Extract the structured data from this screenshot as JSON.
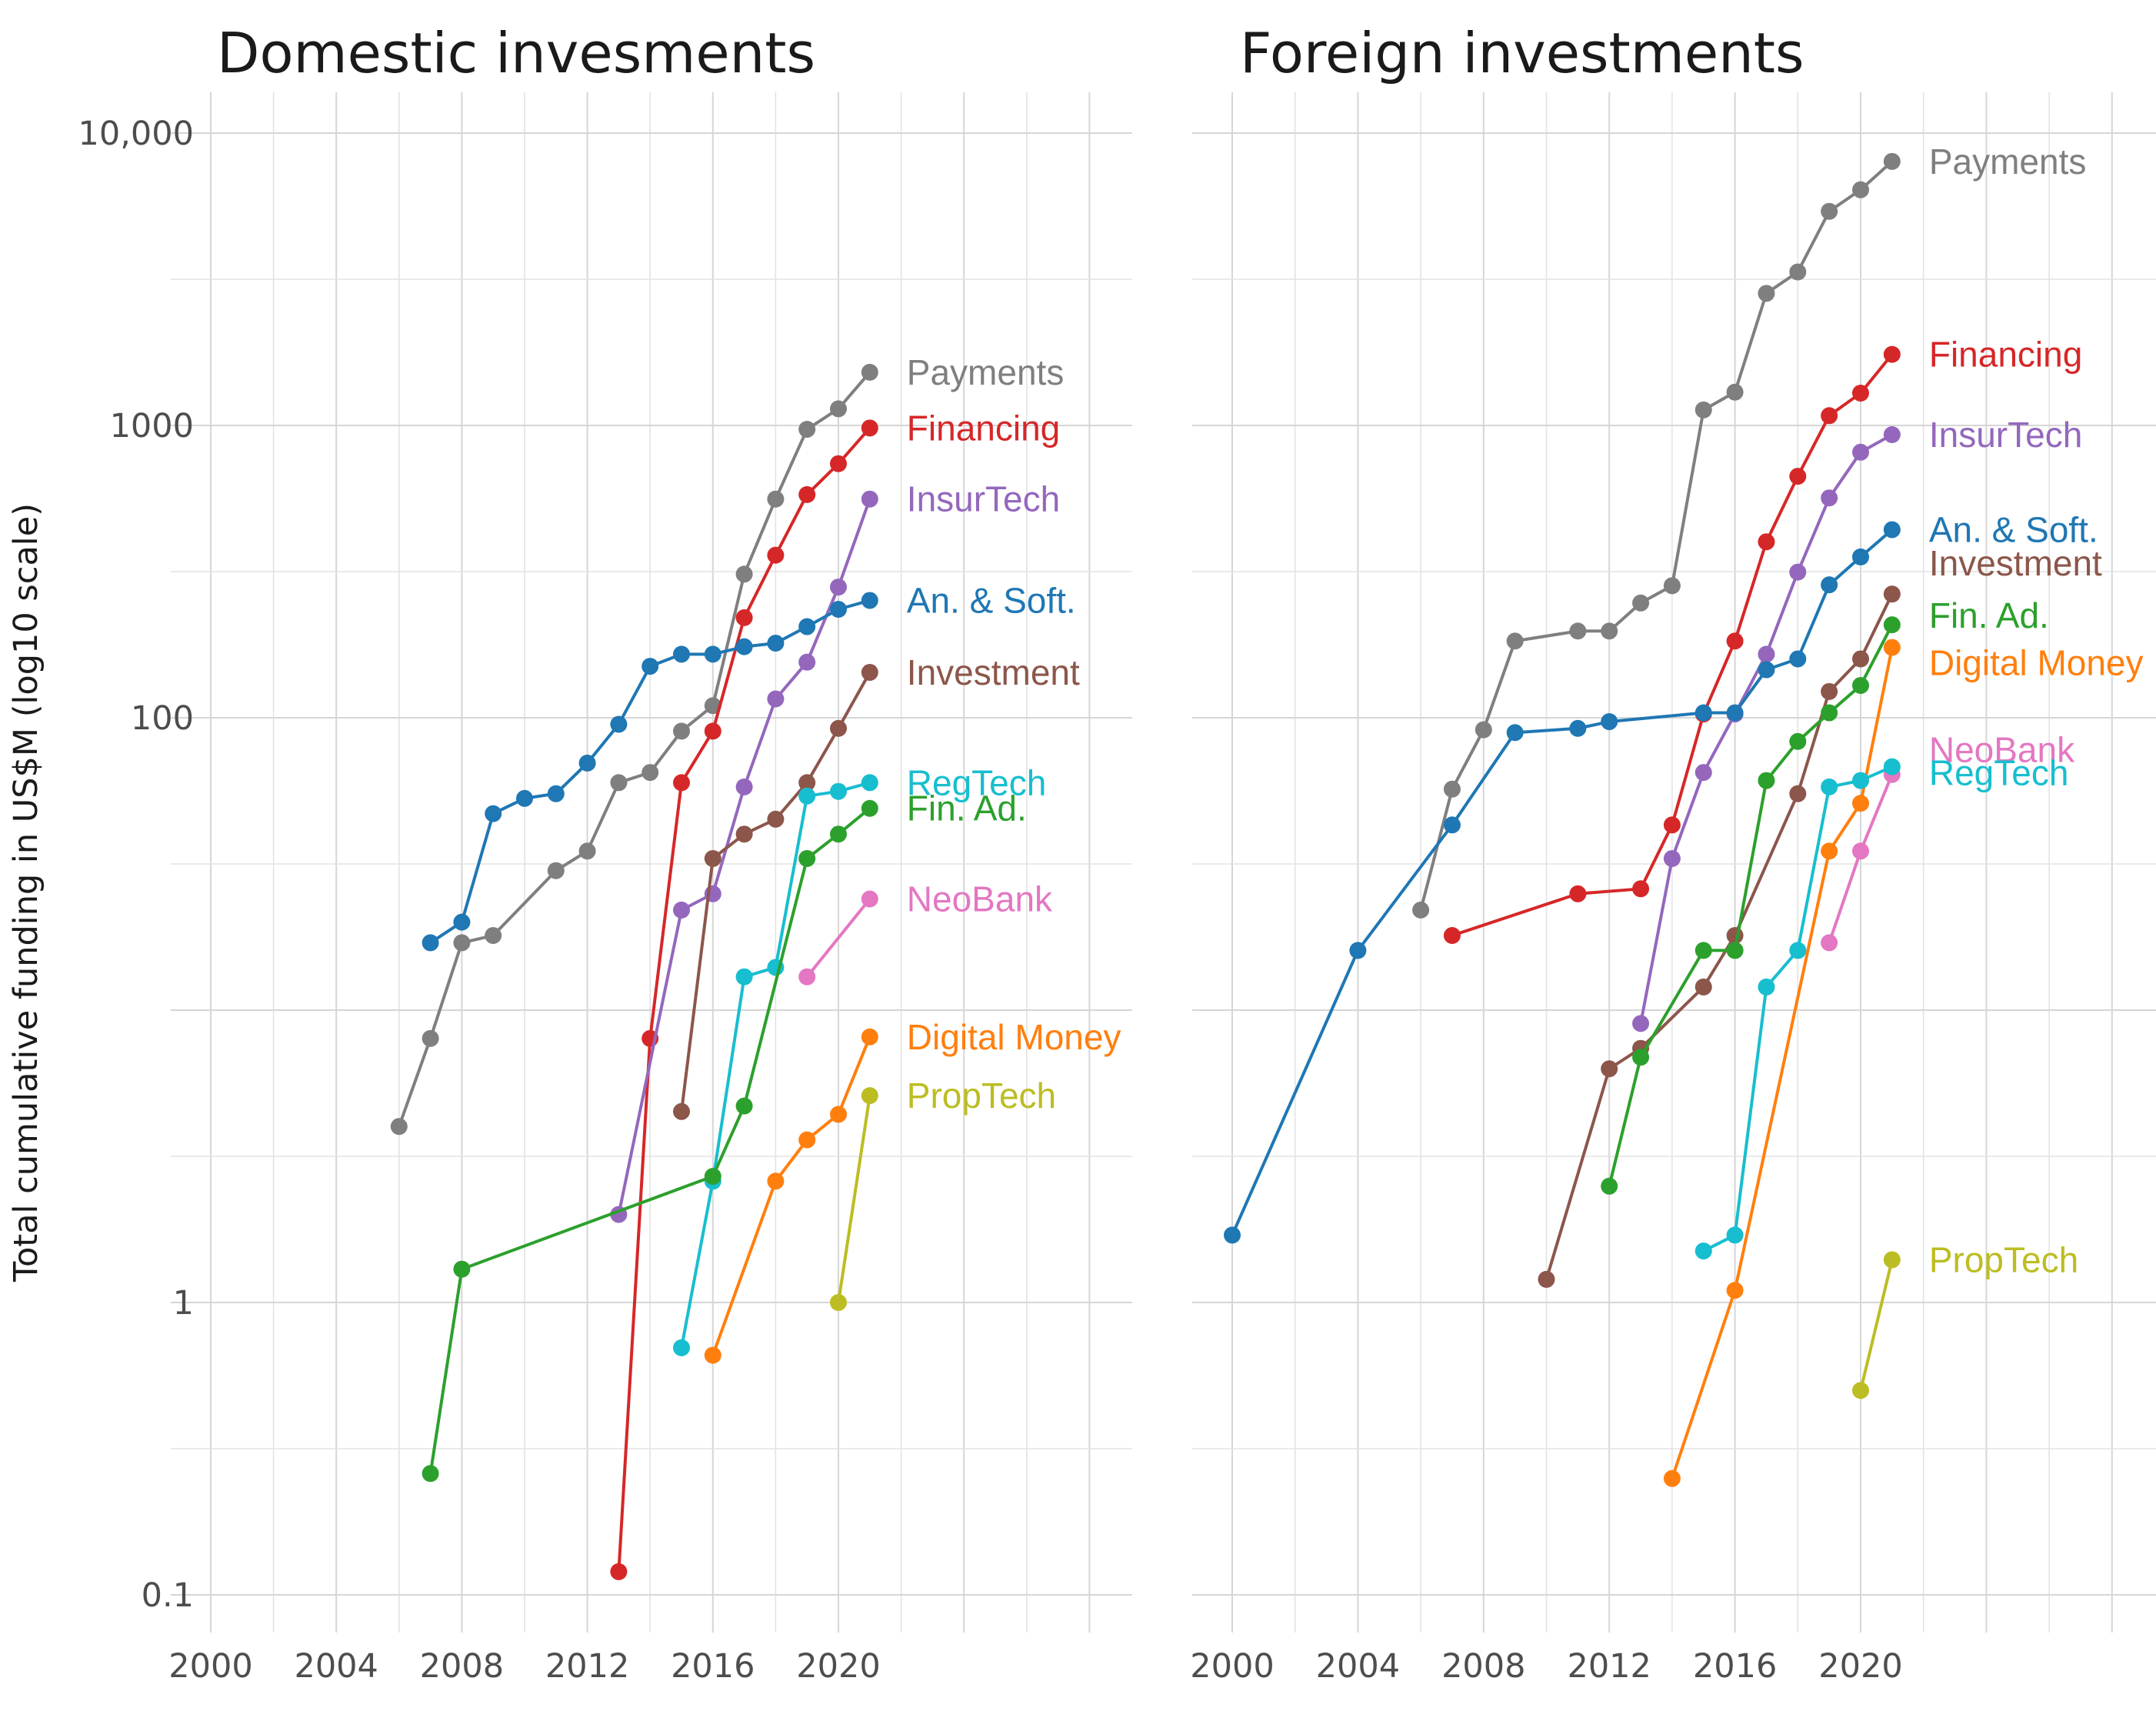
{
  "chart_data": [
    {
      "type": "line",
      "title": "Domestic invesments",
      "ylabel": "Total cumulative funding in US$M (log10 scale)",
      "xlabel": "",
      "y_scale": "log10",
      "ylim": [
        0.08,
        13000
      ],
      "xlim": [
        2000,
        2030
      ],
      "x_ticks": [
        "2000",
        "2004",
        "2008",
        "2012",
        "2016",
        "2020"
      ],
      "y_ticks": [
        "0.1",
        "1",
        "100",
        "1000",
        "10,000"
      ],
      "grid": true,
      "legend": "direct labels at line ends",
      "series": [
        {
          "name": "Payments",
          "color": "#7f7f7f",
          "x": [
            2006,
            2007,
            2008,
            2009,
            2011,
            2012,
            2013,
            2014,
            2015,
            2016,
            2017,
            2018,
            2019,
            2020,
            2021
          ],
          "y": [
            4,
            8,
            17,
            18,
            30,
            35,
            60,
            65,
            90,
            110,
            310,
            560,
            970,
            1140,
            1520
          ]
        },
        {
          "name": "Financing",
          "color": "#d62728",
          "x": [
            2013,
            2014,
            2015,
            2016,
            2017,
            2018,
            2019,
            2020,
            2021
          ],
          "y": [
            0.12,
            8,
            60,
            90,
            220,
            360,
            580,
            740,
            980
          ]
        },
        {
          "name": "InsurTech",
          "color": "#9467bd",
          "x": [
            2013,
            2015,
            2016,
            2017,
            2018,
            2019,
            2020,
            2021
          ],
          "y": [
            2,
            22,
            25,
            58,
            116,
            155,
            280,
            560
          ]
        },
        {
          "name": "An. & Soft.",
          "color": "#1f77b4",
          "x": [
            2007,
            2008,
            2009,
            2010,
            2011,
            2012,
            2013,
            2014,
            2015,
            2016,
            2017,
            2018,
            2019,
            2020,
            2021
          ],
          "y": [
            17,
            20,
            47,
            53,
            55,
            70,
            95,
            150,
            165,
            165,
            175,
            180,
            205,
            235,
            252
          ]
        },
        {
          "name": "Investment",
          "color": "#8c564b",
          "x": [
            2015,
            2016,
            2017,
            2018,
            2019,
            2020,
            2021
          ],
          "y": [
            4.5,
            33,
            40,
            45,
            60,
            92,
            143
          ]
        },
        {
          "name": "RegTech",
          "color": "#17becf",
          "x": [
            2015,
            2016,
            2017,
            2018,
            2019,
            2020,
            2021
          ],
          "y": [
            0.7,
            2.6,
            13,
            14,
            54,
            56,
            60
          ]
        },
        {
          "name": "Fin. Ad.",
          "color": "#2ca02c",
          "x": [
            2007,
            2008,
            2016,
            2017,
            2019,
            2020,
            2021
          ],
          "y": [
            0.26,
            1.3,
            2.7,
            4.7,
            33,
            40,
            49
          ]
        },
        {
          "name": "NeoBank",
          "color": "#e377c2",
          "x": [
            2019,
            2021
          ],
          "y": [
            13,
            24
          ]
        },
        {
          "name": "Digital Money",
          "color": "#ff7f0e",
          "x": [
            2016,
            2018,
            2019,
            2020,
            2021
          ],
          "y": [
            0.66,
            2.6,
            3.6,
            4.4,
            8.1
          ]
        },
        {
          "name": "PropTech",
          "color": "#bcbd22",
          "x": [
            2020,
            2021
          ],
          "y": [
            1,
            5.1
          ]
        }
      ]
    },
    {
      "type": "line",
      "title": "Foreign investments",
      "ylabel": "",
      "xlabel": "",
      "y_scale": "log10",
      "ylim": [
        0.08,
        13000
      ],
      "xlim": [
        2000,
        2030
      ],
      "x_ticks": [
        "2000",
        "2004",
        "2008",
        "2012",
        "2016",
        "2020"
      ],
      "grid": true,
      "legend": "direct labels at line ends",
      "series": [
        {
          "name": "Payments",
          "color": "#7f7f7f",
          "x": [
            2006,
            2007,
            2008,
            2009,
            2011,
            2012,
            2013,
            2014,
            2015,
            2016,
            2017,
            2018,
            2019,
            2020,
            2021
          ],
          "y": [
            22,
            57,
            91,
            183,
            198,
            198,
            247,
            283,
            1130,
            1300,
            2830,
            3350,
            5400,
            6400,
            8000
          ]
        },
        {
          "name": "Financing",
          "color": "#d62728",
          "x": [
            2007,
            2011,
            2013,
            2014,
            2015,
            2016,
            2017,
            2018,
            2019,
            2020,
            2021
          ],
          "y": [
            18,
            25,
            26,
            43,
            103,
            183,
            400,
            670,
            1080,
            1290,
            1750
          ]
        },
        {
          "name": "InsurTech",
          "color": "#9467bd",
          "x": [
            2013,
            2014,
            2015,
            2016,
            2017,
            2018,
            2019,
            2020,
            2021
          ],
          "y": [
            9,
            33,
            65,
            103,
            165,
            315,
            565,
            810,
            930
          ]
        },
        {
          "name": "An. & Soft.",
          "color": "#1f77b4",
          "x": [
            2000,
            2004,
            2007,
            2009,
            2011,
            2012,
            2015,
            2016,
            2017,
            2018,
            2019,
            2020,
            2021
          ],
          "y": [
            1.7,
            16,
            43,
            89,
            92,
            97,
            104,
            104,
            146,
            159,
            285,
            355,
            440
          ]
        },
        {
          "name": "Investment",
          "color": "#8c564b",
          "x": [
            2010,
            2012,
            2013,
            2015,
            2016,
            2018,
            2019,
            2020,
            2021
          ],
          "y": [
            1.2,
            6.3,
            7.4,
            12,
            18,
            55,
            123,
            159,
            265
          ]
        },
        {
          "name": "Fin. Ad.",
          "color": "#2ca02c",
          "x": [
            2012,
            2013,
            2015,
            2016,
            2017,
            2018,
            2019,
            2020,
            2021
          ],
          "y": [
            2.5,
            6.9,
            16,
            16,
            61,
            83,
            104,
            129,
            208
          ]
        },
        {
          "name": "Digital Money",
          "color": "#ff7f0e",
          "x": [
            2014,
            2016,
            2019,
            2020,
            2021
          ],
          "y": [
            0.25,
            1.1,
            35,
            51,
            174
          ]
        },
        {
          "name": "NeoBank",
          "color": "#e377c2",
          "x": [
            2019,
            2020,
            2021
          ],
          "y": [
            17,
            35,
            64
          ]
        },
        {
          "name": "RegTech",
          "color": "#17becf",
          "x": [
            2015,
            2016,
            2017,
            2018,
            2019,
            2020,
            2021
          ],
          "y": [
            1.5,
            1.7,
            12,
            16,
            58,
            61,
            68
          ]
        },
        {
          "name": "PropTech",
          "color": "#bcbd22",
          "x": [
            2020,
            2021
          ],
          "y": [
            0.5,
            1.4
          ]
        }
      ]
    }
  ]
}
